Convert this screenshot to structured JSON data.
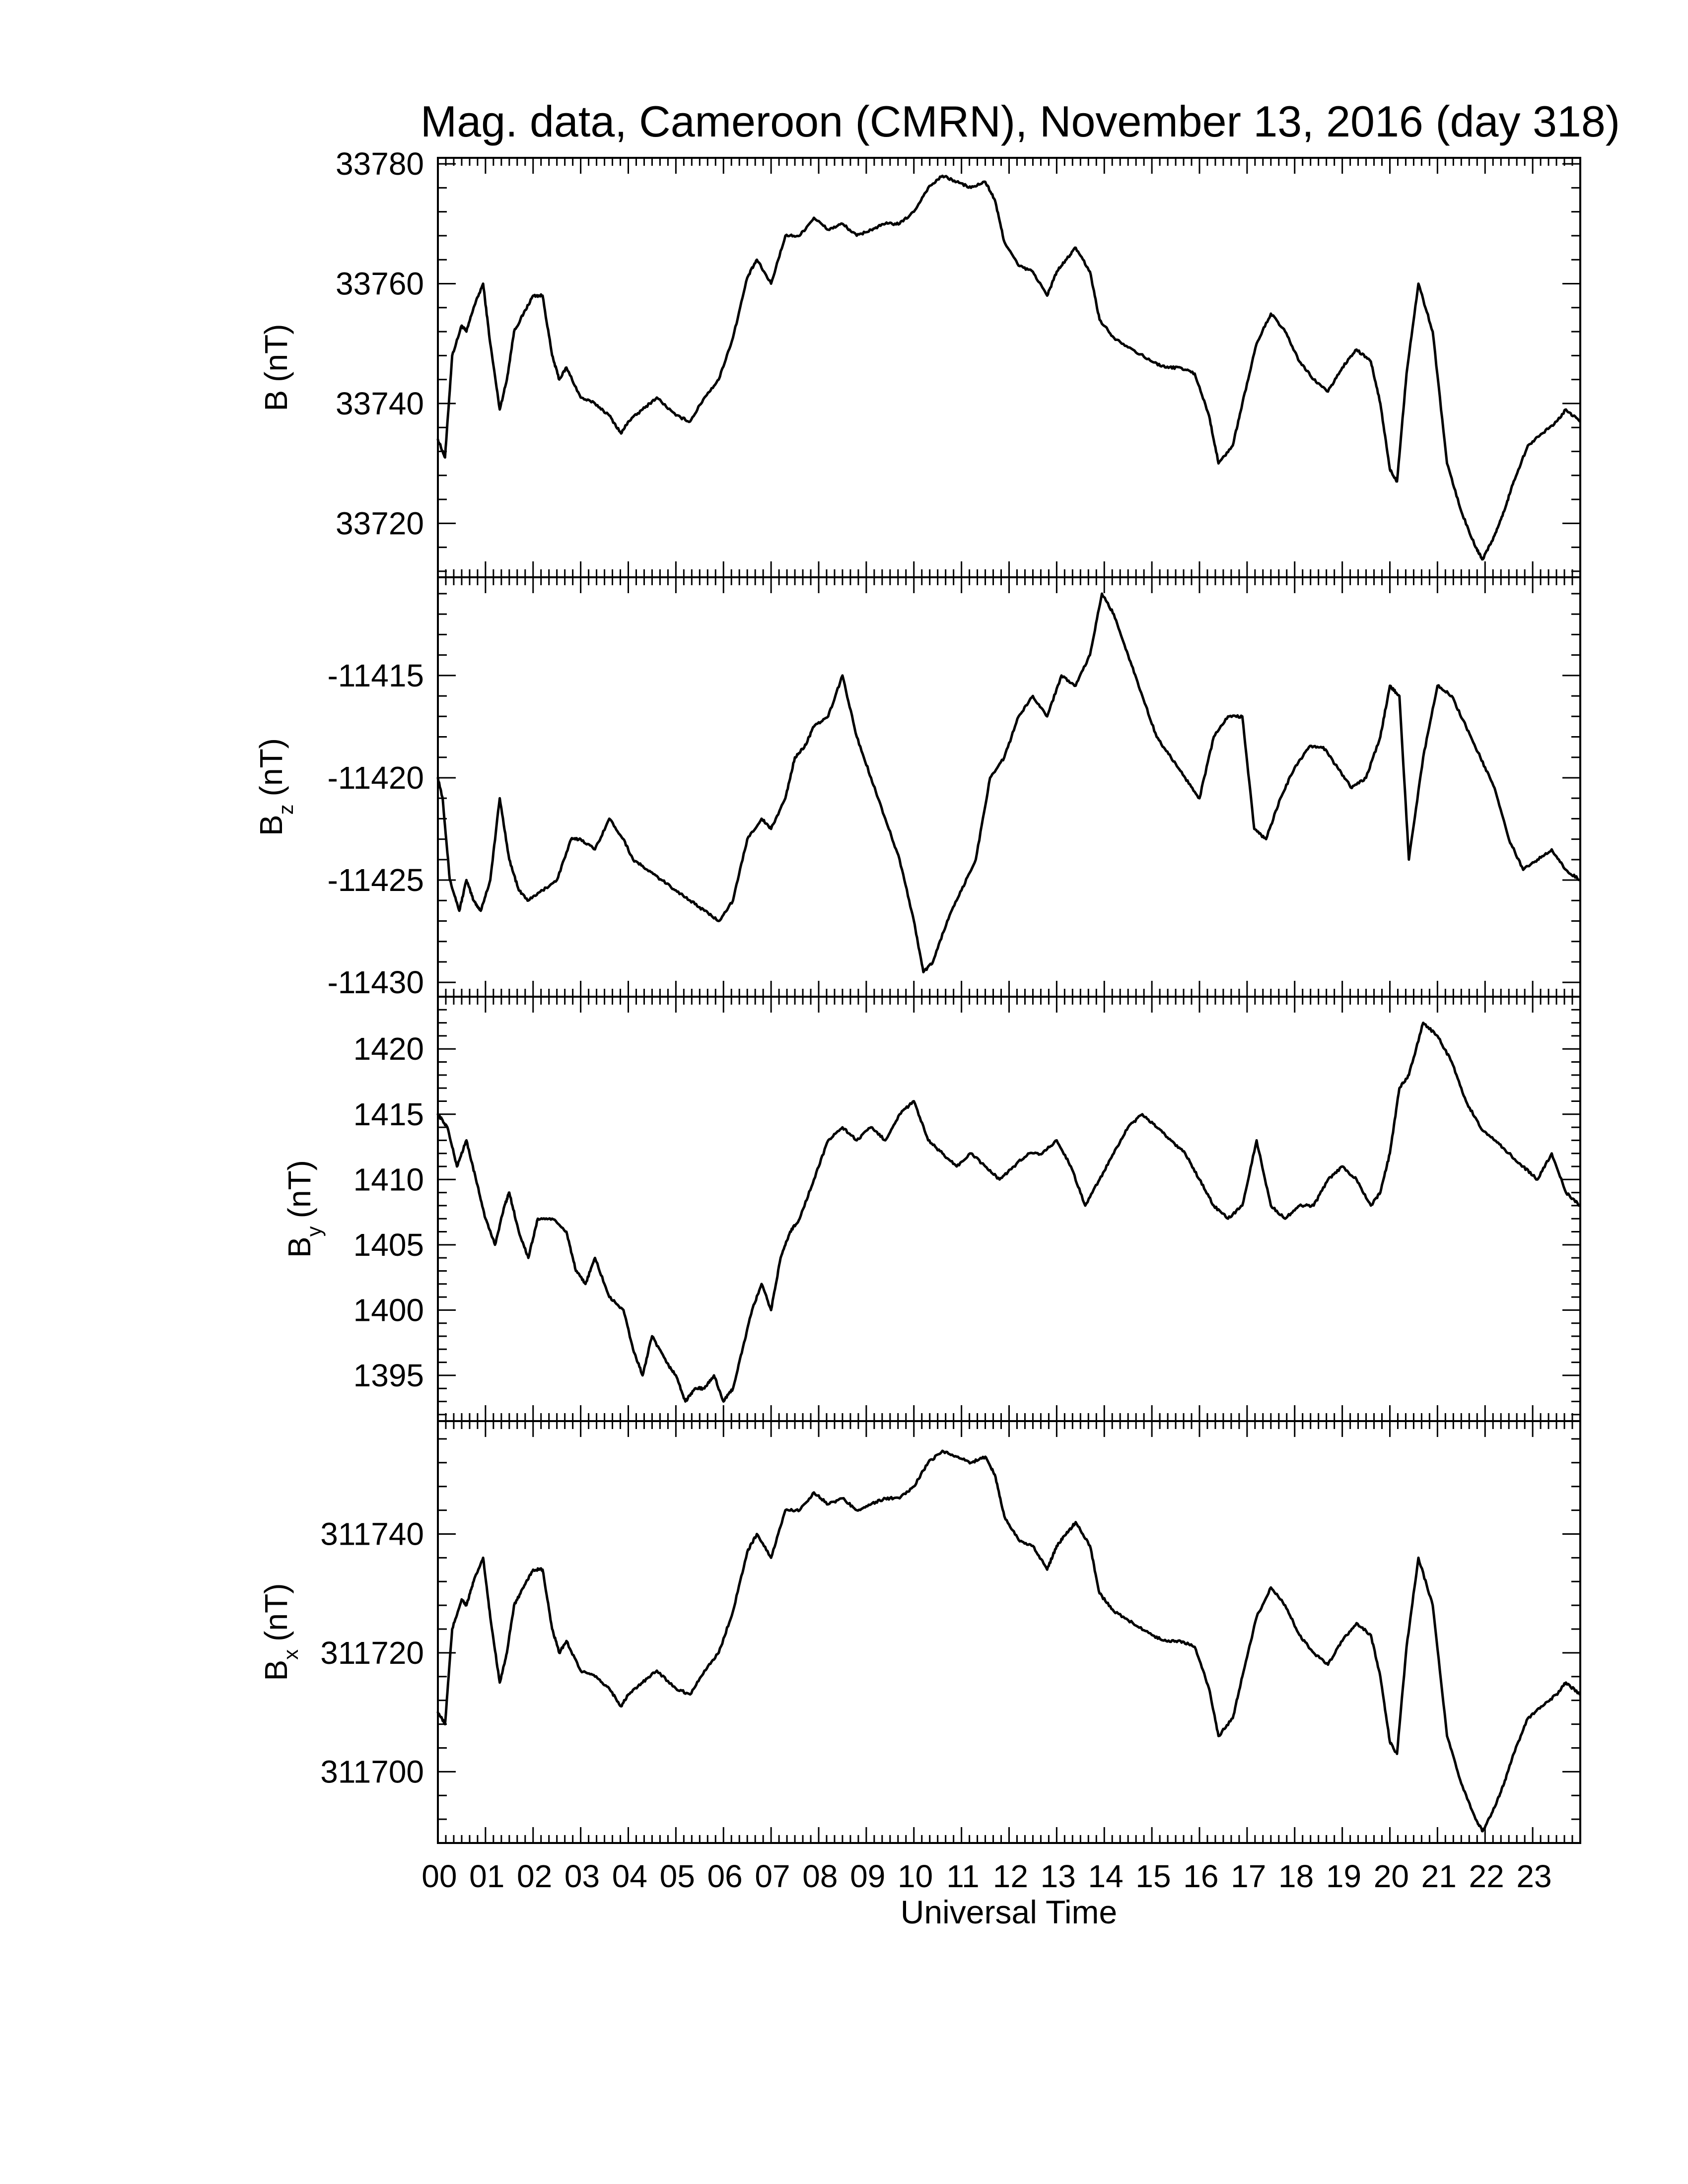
{
  "chart_data": {
    "type": "line",
    "title": "Mag. data, Cameroon (CMRN), November 13, 2016 (day 318)",
    "xlabel": "Universal Time",
    "xlim": [
      0,
      24
    ],
    "x_tick_labels": [
      "00",
      "01",
      "02",
      "03",
      "04",
      "05",
      "06",
      "07",
      "08",
      "09",
      "10",
      "11",
      "12",
      "13",
      "14",
      "15",
      "16",
      "17",
      "18",
      "19",
      "20",
      "21",
      "22",
      "23"
    ],
    "panels": [
      {
        "ylabel_main": "B",
        "ylabel_sub": "",
        "ylabel_unit": "(nT)",
        "ylim": [
          33711,
          33781
        ],
        "yticks": [
          33720,
          33740,
          33760,
          33780
        ],
        "x": [
          0,
          0.15,
          0.3,
          0.5,
          0.6,
          0.75,
          0.95,
          1.1,
          1.3,
          1.45,
          1.6,
          1.8,
          2.0,
          2.2,
          2.4,
          2.55,
          2.7,
          3.0,
          3.3,
          3.6,
          3.85,
          4.0,
          4.3,
          4.6,
          5.0,
          5.3,
          5.6,
          5.9,
          6.2,
          6.5,
          6.7,
          7.0,
          7.3,
          7.6,
          7.9,
          8.2,
          8.5,
          8.8,
          9.1,
          9.4,
          9.7,
          10.0,
          10.3,
          10.6,
          10.9,
          11.2,
          11.5,
          11.7,
          11.9,
          12.2,
          12.5,
          12.8,
          13.0,
          13.2,
          13.4,
          13.7,
          13.9,
          14.2,
          14.6,
          15.0,
          15.3,
          15.6,
          15.9,
          16.2,
          16.4,
          16.7,
          16.9,
          17.2,
          17.5,
          17.8,
          18.1,
          18.4,
          18.7,
          19.0,
          19.3,
          19.6,
          19.8,
          20.0,
          20.15,
          20.35,
          20.6,
          20.9,
          21.2,
          21.5,
          21.8,
          21.95,
          22.2,
          22.4,
          22.6,
          22.9,
          23.2,
          23.5,
          23.7,
          23.99
        ],
        "y": [
          33734,
          33731,
          33748,
          33753,
          33752,
          33756,
          33760,
          33750,
          33739,
          33744,
          33752,
          33755,
          33758,
          33758,
          33748,
          33744,
          33746,
          33741,
          33740,
          33738,
          33735,
          33737,
          33739,
          33741,
          33738,
          33737,
          33741,
          33744,
          33751,
          33761,
          33764,
          33760,
          33768,
          33768,
          33771,
          33769,
          33770,
          33768,
          33769,
          33770,
          33770,
          33772,
          33776,
          33778,
          33777,
          33776,
          33777,
          33774,
          33767,
          33763,
          33762,
          33758,
          33762,
          33764,
          33766,
          33762,
          33754,
          33751,
          33749,
          33747,
          33746,
          33746,
          33745,
          33738,
          33730,
          33733,
          33740,
          33750,
          33755,
          33752,
          33747,
          33744,
          33742,
          33746,
          33749,
          33747,
          33740,
          33729,
          33727,
          33745,
          33760,
          33752,
          33730,
          33722,
          33716,
          33714,
          33718,
          33722,
          33727,
          33733,
          33735,
          33737,
          33739,
          33737
        ]
      },
      {
        "ylabel_main": "B",
        "ylabel_sub": "z",
        "ylabel_unit": "(nT)",
        "ylim": [
          -11430.7,
          -11410.2
        ],
        "yticks": [
          -11430,
          -11425,
          -11420,
          -11415
        ],
        "x": [
          0,
          0.1,
          0.25,
          0.45,
          0.6,
          0.75,
          0.9,
          1.1,
          1.3,
          1.5,
          1.7,
          1.9,
          2.2,
          2.5,
          2.8,
          3.0,
          3.3,
          3.6,
          3.9,
          4.1,
          4.4,
          4.7,
          5.0,
          5.3,
          5.6,
          5.9,
          6.2,
          6.5,
          6.8,
          7.0,
          7.3,
          7.5,
          7.7,
          7.9,
          8.2,
          8.5,
          8.8,
          9.1,
          9.4,
          9.7,
          10.0,
          10.2,
          10.4,
          10.7,
          11.0,
          11.3,
          11.6,
          11.9,
          12.2,
          12.5,
          12.8,
          13.1,
          13.4,
          13.7,
          13.95,
          14.2,
          14.5,
          14.8,
          15.1,
          15.4,
          15.7,
          16.0,
          16.3,
          16.6,
          16.9,
          17.15,
          17.4,
          17.7,
          18.0,
          18.3,
          18.6,
          18.9,
          19.2,
          19.5,
          19.8,
          20.0,
          20.2,
          20.4,
          20.7,
          21.0,
          21.3,
          21.6,
          21.9,
          22.2,
          22.5,
          22.8,
          23.1,
          23.4,
          23.7,
          23.99
        ],
        "y": [
          -11420,
          -11421,
          -11425,
          -11426.5,
          -11425,
          -11426,
          -11426.5,
          -11425,
          -11421,
          -11424,
          -11425.5,
          -11426,
          -11425.5,
          -11425,
          -11423,
          -11423,
          -11423.5,
          -11422,
          -11423,
          -11424,
          -11424.5,
          -11425,
          -11425.5,
          -11426,
          -11426.5,
          -11427,
          -11426,
          -11423,
          -11422,
          -11422.5,
          -11421,
          -11419,
          -11418.5,
          -11417.5,
          -11417,
          -11415,
          -11418,
          -11420,
          -11422,
          -11424,
          -11427,
          -11429.5,
          -11429,
          -11427,
          -11425.5,
          -11424,
          -11420,
          -11419,
          -11417,
          -11416,
          -11417,
          -11415,
          -11415.5,
          -11414,
          -11411,
          -11412,
          -11414,
          -11416,
          -11418,
          -11419,
          -11420,
          -11421,
          -11418,
          -11417,
          -11417,
          -11422.5,
          -11423,
          -11421,
          -11419.5,
          -11418.5,
          -11418.5,
          -11419.5,
          -11420.5,
          -11420,
          -11418,
          -11415.5,
          -11416,
          -11424,
          -11419,
          -11415.5,
          -11416,
          -11417.5,
          -11419,
          -11420.5,
          -11423,
          -11424.5,
          -11424,
          -11423.5,
          -11424.5,
          -11425
        ]
      },
      {
        "ylabel_main": "B",
        "ylabel_sub": "y",
        "ylabel_unit": "(nT)",
        "ylim": [
          1391.5,
          1424
        ],
        "yticks": [
          1395,
          1400,
          1405,
          1410,
          1415,
          1420
        ],
        "x": [
          0,
          0.2,
          0.4,
          0.6,
          0.8,
          1.0,
          1.2,
          1.4,
          1.5,
          1.7,
          1.9,
          2.1,
          2.4,
          2.7,
          2.9,
          3.1,
          3.3,
          3.6,
          3.9,
          4.1,
          4.3,
          4.5,
          4.8,
          5.0,
          5.2,
          5.4,
          5.6,
          5.8,
          6.0,
          6.2,
          6.4,
          6.6,
          6.8,
          7.0,
          7.2,
          7.4,
          7.6,
          7.9,
          8.2,
          8.5,
          8.8,
          9.1,
          9.4,
          9.7,
          10.0,
          10.3,
          10.6,
          10.9,
          11.2,
          11.5,
          11.8,
          12.1,
          12.4,
          12.7,
          13.0,
          13.3,
          13.6,
          13.9,
          14.2,
          14.5,
          14.8,
          15.1,
          15.4,
          15.7,
          16.0,
          16.3,
          16.6,
          16.9,
          17.2,
          17.5,
          17.8,
          18.1,
          18.4,
          18.7,
          19.0,
          19.3,
          19.6,
          19.8,
          20.0,
          20.2,
          20.4,
          20.7,
          21.0,
          21.3,
          21.6,
          21.9,
          22.2,
          22.5,
          22.8,
          23.1,
          23.4,
          23.7,
          23.99
        ],
        "y": [
          1415,
          1414,
          1411,
          1413,
          1410,
          1407,
          1405,
          1408,
          1409,
          1406,
          1404,
          1407,
          1407,
          1406,
          1403,
          1402,
          1404,
          1401,
          1400,
          1397,
          1395,
          1398,
          1396,
          1395,
          1393,
          1394,
          1394,
          1395,
          1393,
          1394,
          1397,
          1400,
          1402,
          1400,
          1404,
          1406,
          1407,
          1410,
          1413,
          1414,
          1413,
          1414,
          1413,
          1415,
          1416,
          1413,
          1412,
          1411,
          1412,
          1411,
          1410,
          1411,
          1412,
          1412,
          1413,
          1411,
          1408,
          1410,
          1412,
          1414,
          1415,
          1414,
          1413,
          1412,
          1410,
          1408,
          1407,
          1408,
          1413,
          1408,
          1407,
          1408,
          1408,
          1410,
          1411,
          1410,
          1408,
          1409,
          1412,
          1417,
          1418,
          1422,
          1421,
          1419,
          1416,
          1414,
          1413,
          1412,
          1411,
          1410,
          1412,
          1409,
          1408
        ]
      },
      {
        "ylabel_main": "B",
        "ylabel_sub": "x",
        "ylabel_unit": "(nT)",
        "ylim": [
          1688,
          1759
        ],
        "yticks": [
          1700,
          1720,
          1740
        ],
        "x": [
          0,
          0.15,
          0.3,
          0.5,
          0.6,
          0.75,
          0.95,
          1.1,
          1.3,
          1.45,
          1.6,
          1.8,
          2.0,
          2.2,
          2.4,
          2.55,
          2.7,
          3.0,
          3.3,
          3.6,
          3.85,
          4.0,
          4.3,
          4.6,
          5.0,
          5.3,
          5.6,
          5.9,
          6.2,
          6.5,
          6.7,
          7.0,
          7.3,
          7.6,
          7.9,
          8.2,
          8.5,
          8.8,
          9.1,
          9.4,
          9.7,
          10.0,
          10.3,
          10.6,
          10.9,
          11.2,
          11.5,
          11.7,
          11.9,
          12.2,
          12.5,
          12.8,
          13.0,
          13.2,
          13.4,
          13.7,
          13.9,
          14.2,
          14.6,
          15.0,
          15.3,
          15.6,
          15.9,
          16.2,
          16.4,
          16.7,
          16.9,
          17.2,
          17.5,
          17.8,
          18.1,
          18.4,
          18.7,
          19.0,
          19.3,
          19.6,
          19.8,
          20.0,
          20.15,
          20.35,
          20.6,
          20.9,
          21.2,
          21.5,
          21.8,
          21.95,
          22.2,
          22.4,
          22.6,
          22.9,
          23.2,
          23.5,
          23.7,
          23.99
        ],
        "y": [
          1710,
          1708,
          1724,
          1729,
          1728,
          1732,
          1736,
          1726,
          1715,
          1720,
          1728,
          1731,
          1734,
          1734,
          1724,
          1720,
          1722,
          1717,
          1716,
          1714,
          1711,
          1713,
          1715,
          1717,
          1714,
          1713,
          1717,
          1720,
          1727,
          1737,
          1740,
          1736,
          1744,
          1744,
          1747,
          1745,
          1746,
          1744,
          1745,
          1746,
          1746,
          1748,
          1752,
          1754,
          1753,
          1752,
          1753,
          1750,
          1743,
          1739,
          1738,
          1734,
          1738,
          1740,
          1742,
          1738,
          1730,
          1727,
          1725,
          1723,
          1722,
          1722,
          1721,
          1714,
          1706,
          1709,
          1716,
          1726,
          1731,
          1728,
          1723,
          1720,
          1718,
          1722,
          1725,
          1723,
          1716,
          1705,
          1703,
          1721,
          1736,
          1728,
          1706,
          1698,
          1692,
          1690,
          1694,
          1698,
          1703,
          1709,
          1711,
          1713,
          1715,
          1713
        ]
      }
    ],
    "panel_tick_label_prefix": [
      "",
      "",
      "",
      "31"
    ]
  }
}
